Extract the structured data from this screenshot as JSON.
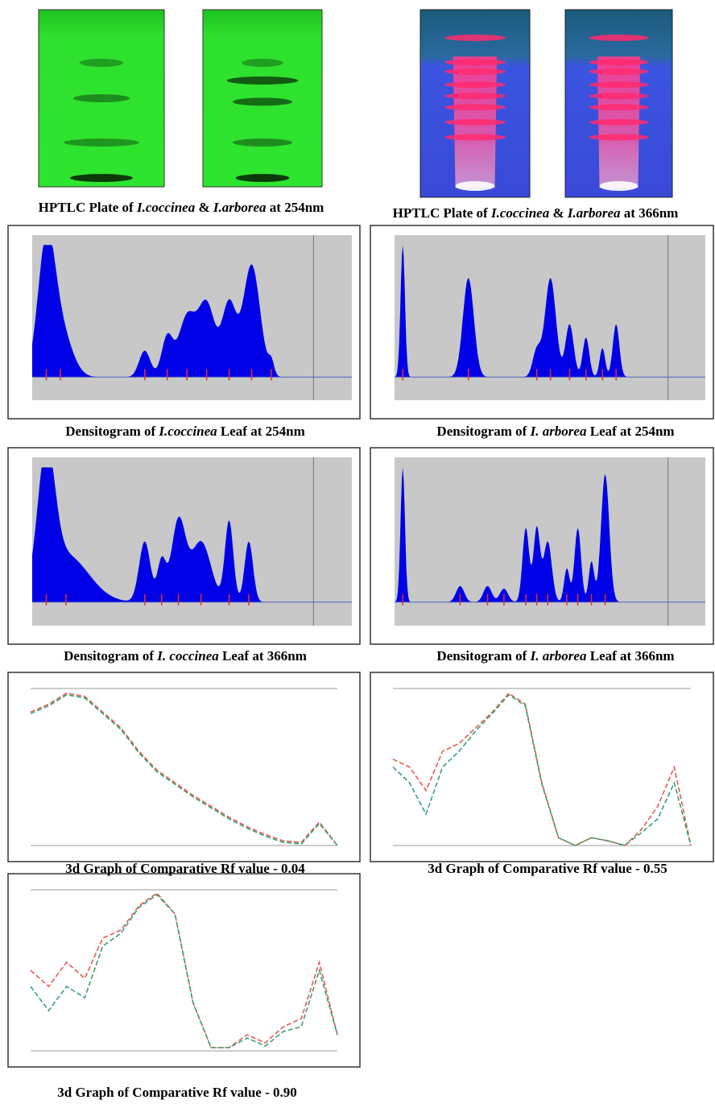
{
  "panels": [
    {
      "caption": [
        "HPTLC Plate of ",
        "I.coccinea",
        " & ",
        "I.arborea",
        " at 254nm"
      ]
    },
    {
      "caption": [
        "HPTLC Plate of ",
        "I.coccinea",
        " & ",
        "I.arborea",
        " at 366nm"
      ]
    },
    {
      "caption": [
        "Densitogram of ",
        "I.coccinea",
        " Leaf at 254nm"
      ]
    },
    {
      "caption": [
        "Densitogram of ",
        "I. arborea",
        " Leaf at 254nm"
      ]
    },
    {
      "caption": [
        "Densitogram of ",
        "I. coccinea",
        " Leaf at 366nm"
      ]
    },
    {
      "caption": [
        "Densitogram of ",
        "I. arborea",
        " Leaf at 366nm"
      ]
    },
    {
      "caption": [
        "3d Graph of Comparative Rf value - 0.04"
      ]
    },
    {
      "caption": [
        "3d Graph of Comparative Rf value - 0.55"
      ]
    },
    {
      "caption": [
        "3d Graph of Comparative Rf value - 0.90"
      ]
    }
  ]
}
